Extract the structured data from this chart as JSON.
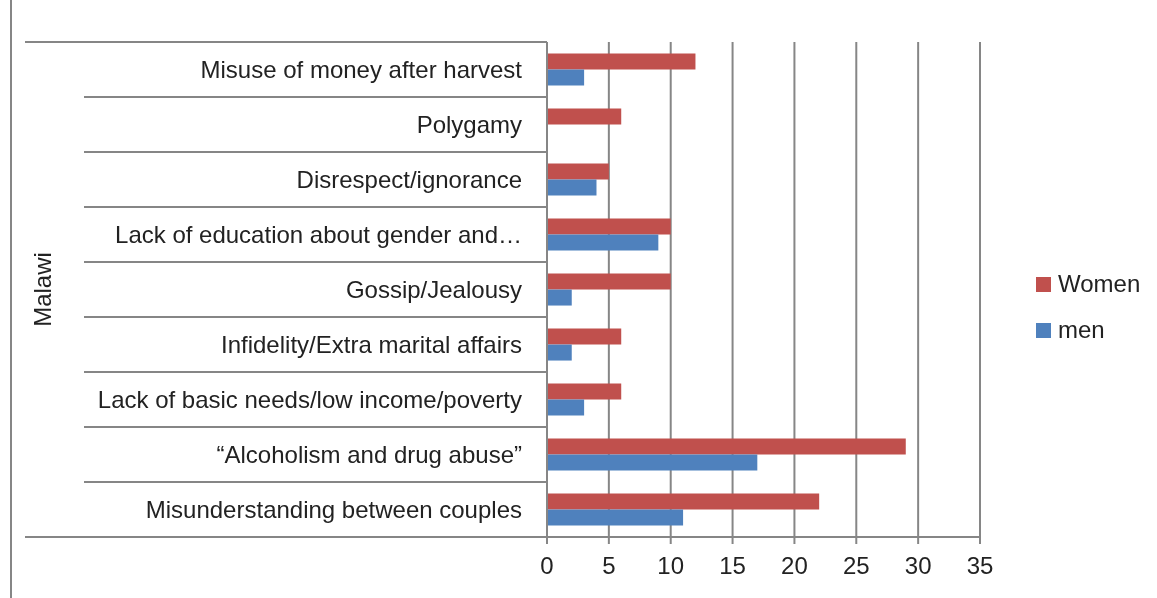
{
  "chart_data": {
    "type": "bar",
    "orientation": "horizontal",
    "ylabel": "Malawi",
    "categories": [
      "Misuse of money after harvest",
      "Polygamy",
      "Disrespect/ignorance",
      "Lack of education about gender and…",
      "Gossip/Jealousy",
      "Infidelity/Extra marital affairs",
      "Lack of basic needs/low income/poverty",
      "“Alcoholism and drug abuse”",
      "Misunderstanding between couples"
    ],
    "series": [
      {
        "name": "Women",
        "color": "#c0504d",
        "values": [
          12,
          6,
          5,
          10,
          10,
          6,
          6,
          29,
          22
        ]
      },
      {
        "name": "men",
        "color": "#4f81bd",
        "values": [
          3,
          null,
          4,
          9,
          2,
          2,
          3,
          17,
          11
        ]
      }
    ],
    "xlim": [
      0,
      35
    ],
    "xticks": [
      0,
      5,
      10,
      15,
      20,
      25,
      30,
      35
    ],
    "grid": "x",
    "legend": "right"
  }
}
